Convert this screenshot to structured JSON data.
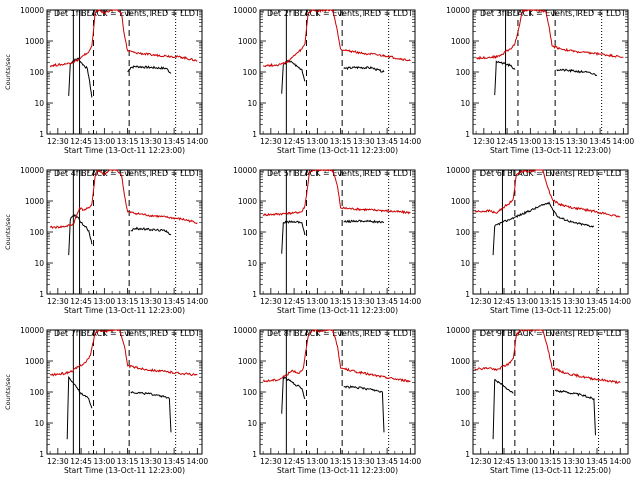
{
  "chart_data": [
    {
      "type": "line",
      "title": "Det 1f BLACK = Events, RED = LLD",
      "xlabel": "Start Time (13-Oct-11 12:23:00)",
      "ylabel": "Counts/sec",
      "yscale": "log",
      "ylim": [
        1,
        10000
      ],
      "xlim": [
        "12:23",
        "14:03"
      ],
      "xticks": [
        "12:30",
        "12:45",
        "13:00",
        "13:15",
        "13:30",
        "13:45",
        "14:00"
      ],
      "yticks": [
        "1",
        "10",
        "100",
        "1000",
        "10000"
      ],
      "grid": false,
      "solid_vlines": [
        "12:40",
        "12:44"
      ],
      "dashed_vlines": [
        "12:53",
        "13:16"
      ],
      "dotted_vlines": [
        "13:46"
      ],
      "series": [
        {
          "color": "#000000",
          "x": [
            "12:37",
            "12:38",
            "12:40",
            "12:43",
            "12:45",
            "12:47",
            "12:49",
            "12:50",
            "12:52",
            "12:55",
            "12:58",
            "13:05",
            "13:10",
            "13:13",
            "13:15",
            "13:17",
            "13:20",
            "13:30",
            "13:40",
            "13:43"
          ],
          "y": [
            17,
            190,
            230,
            280,
            200,
            160,
            130,
            70,
            15,
            null,
            null,
            null,
            null,
            null,
            100,
            140,
            150,
            140,
            130,
            90
          ]
        },
        {
          "color": "#cc0000",
          "x": [
            "12:25",
            "12:35",
            "12:40",
            "12:44",
            "12:47",
            "12:50",
            "12:52",
            "12:54",
            "12:56",
            "13:00",
            "13:04",
            "13:08",
            "13:11",
            "13:13",
            "13:15",
            "13:20",
            "13:30",
            "13:40",
            "13:50",
            "14:00"
          ],
          "y": [
            160,
            180,
            210,
            260,
            350,
            450,
            700,
            8000,
            10000,
            8000,
            10000,
            10000,
            8000,
            1500,
            480,
            420,
            360,
            330,
            300,
            230
          ]
        }
      ]
    },
    {
      "type": "line",
      "title": "Det 2f BLACK = Events, RED = LLD",
      "xlabel": "Start Time (13-Oct-11 12:23:00)",
      "ylabel": "",
      "yscale": "log",
      "ylim": [
        1,
        10000
      ],
      "xlim": [
        "12:23",
        "14:03"
      ],
      "xticks": [
        "12:30",
        "12:45",
        "13:00",
        "13:15",
        "13:30",
        "13:45",
        "14:00"
      ],
      "yticks": [
        "1",
        "10",
        "100",
        "1000",
        "10000"
      ],
      "grid": false,
      "solid_vlines": [
        "12:40"
      ],
      "dashed_vlines": [
        "12:53",
        "13:16"
      ],
      "dotted_vlines": [
        "13:46"
      ],
      "series": [
        {
          "color": "#000000",
          "x": [
            "12:37",
            "12:38",
            "12:41",
            "12:44",
            "12:47",
            "12:50",
            "12:52",
            "13:15",
            "13:17",
            "13:25",
            "13:35",
            "13:43"
          ],
          "y": [
            20,
            170,
            230,
            200,
            150,
            120,
            50,
            null,
            130,
            140,
            135,
            100
          ]
        },
        {
          "color": "#cc0000",
          "x": [
            "12:25",
            "12:35",
            "12:40",
            "12:44",
            "12:48",
            "12:50",
            "12:52",
            "12:54",
            "12:57",
            "13:00",
            "13:05",
            "13:10",
            "13:13",
            "13:15",
            "13:20",
            "13:30",
            "13:45",
            "14:00"
          ],
          "y": [
            160,
            170,
            200,
            300,
            450,
            550,
            800,
            8000,
            10000,
            9000,
            10000,
            10000,
            2000,
            550,
            480,
            400,
            320,
            230
          ]
        }
      ]
    },
    {
      "type": "line",
      "title": "Det 3f BLACK = Events, RED = LLD",
      "xlabel": "Start Time (13-Oct-11 12:23:00)",
      "ylabel": "",
      "yscale": "log",
      "ylim": [
        1,
        10000
      ],
      "xlim": [
        "12:23",
        "14:03"
      ],
      "xticks": [
        "12:30",
        "12:45",
        "13:00",
        "13:15",
        "13:30",
        "13:45",
        "14:00"
      ],
      "yticks": [
        "1",
        "10",
        "100",
        "1000",
        "10000"
      ],
      "grid": false,
      "solid_vlines": [
        "12:44"
      ],
      "dashed_vlines": [
        "12:52",
        "13:16"
      ],
      "dotted_vlines": [
        "13:46"
      ],
      "series": [
        {
          "color": "#000000",
          "x": [
            "12:37",
            "12:38",
            "12:41",
            "12:44",
            "12:47",
            "12:50",
            "13:15",
            "13:17",
            "13:25",
            "13:35",
            "13:43"
          ],
          "y": [
            18,
            220,
            200,
            180,
            160,
            120,
            null,
            120,
            110,
            100,
            80
          ]
        },
        {
          "color": "#cc0000",
          "x": [
            "12:25",
            "12:35",
            "12:40",
            "12:44",
            "12:48",
            "12:50",
            "12:52",
            "12:55",
            "13:00",
            "13:05",
            "13:10",
            "13:12",
            "13:14",
            "13:20",
            "13:30",
            "13:45",
            "14:00"
          ],
          "y": [
            280,
            300,
            320,
            450,
            600,
            800,
            2000,
            10000,
            10000,
            10000,
            9000,
            3000,
            700,
            550,
            450,
            380,
            300
          ]
        }
      ]
    },
    {
      "type": "line",
      "title": "Det 4f BLACK = Events, RED = LLD",
      "xlabel": "Start Time (13-Oct-11 12:23:00)",
      "ylabel": "Counts/sec",
      "yscale": "log",
      "ylim": [
        1,
        10000
      ],
      "xlim": [
        "12:23",
        "14:03"
      ],
      "xticks": [
        "12:30",
        "12:45",
        "13:00",
        "13:15",
        "13:30",
        "13:45",
        "14:00"
      ],
      "yticks": [
        "1",
        "10",
        "100",
        "1000",
        "10000"
      ],
      "grid": false,
      "solid_vlines": [
        "12:40",
        "12:44"
      ],
      "dashed_vlines": [
        "12:53",
        "13:16"
      ],
      "dotted_vlines": [
        "13:46"
      ],
      "series": [
        {
          "color": "#000000",
          "x": [
            "12:37",
            "12:38",
            "12:40",
            "12:43",
            "12:45",
            "12:47",
            "12:50",
            "12:52",
            "13:15",
            "13:17",
            "13:20",
            "13:30",
            "13:40",
            "13:43"
          ],
          "y": [
            18,
            250,
            350,
            300,
            200,
            160,
            110,
            40,
            null,
            110,
            130,
            120,
            110,
            80
          ]
        },
        {
          "color": "#cc0000",
          "x": [
            "12:25",
            "12:35",
            "12:40",
            "12:44",
            "12:47",
            "12:50",
            "12:52",
            "12:54",
            "12:56",
            "13:00",
            "13:04",
            "13:08",
            "13:11",
            "13:13",
            "13:15",
            "13:20",
            "13:30",
            "13:40",
            "13:50",
            "14:00"
          ],
          "y": [
            140,
            150,
            180,
            600,
            500,
            600,
            800,
            6000,
            10000,
            7000,
            10000,
            10000,
            7000,
            1500,
            450,
            400,
            340,
            300,
            260,
            200
          ]
        }
      ]
    },
    {
      "type": "line",
      "title": "Det 5f BLACK = Events, RED = LLD",
      "xlabel": "Start Time (13-Oct-11 12:23:00)",
      "ylabel": "",
      "yscale": "log",
      "ylim": [
        1,
        10000
      ],
      "xlim": [
        "12:23",
        "14:03"
      ],
      "xticks": [
        "12:30",
        "12:45",
        "13:00",
        "13:15",
        "13:30",
        "13:45",
        "14:00"
      ],
      "yticks": [
        "1",
        "10",
        "100",
        "1000",
        "10000"
      ],
      "grid": false,
      "solid_vlines": [
        "12:40"
      ],
      "dashed_vlines": [
        "12:53",
        "13:16"
      ],
      "dotted_vlines": [
        "13:46"
      ],
      "series": [
        {
          "color": "#000000",
          "x": [
            "12:37",
            "12:38",
            "12:41",
            "12:45",
            "12:50",
            "12:52",
            "13:15",
            "13:17",
            "13:25",
            "13:35",
            "13:43"
          ],
          "y": [
            20,
            200,
            210,
            220,
            200,
            80,
            null,
            210,
            230,
            220,
            200
          ]
        },
        {
          "color": "#cc0000",
          "x": [
            "12:25",
            "12:35",
            "12:45",
            "12:50",
            "12:52",
            "12:55",
            "13:00",
            "13:05",
            "13:10",
            "13:13",
            "13:15",
            "13:25",
            "13:40",
            "14:00"
          ],
          "y": [
            360,
            380,
            420,
            450,
            700,
            9000,
            10000,
            10000,
            10000,
            3000,
            600,
            550,
            500,
            420
          ]
        }
      ]
    },
    {
      "type": "line",
      "title": "Det 6f BLACK = Events, RED = LLD",
      "xlabel": "Start Time (13-Oct-11 12:25:00)",
      "ylabel": "",
      "yscale": "log",
      "ylim": [
        1,
        10000
      ],
      "xlim": [
        "12:25",
        "14:05"
      ],
      "xticks": [
        "12:30",
        "12:45",
        "13:00",
        "13:15",
        "13:30",
        "13:45",
        "14:00"
      ],
      "yticks": [
        "1",
        "10",
        "100",
        "1000",
        "10000"
      ],
      "grid": false,
      "solid_vlines": [
        "12:44"
      ],
      "dashed_vlines": [
        "12:52",
        "13:17"
      ],
      "dotted_vlines": [
        "13:46"
      ],
      "series": [
        {
          "color": "#000000",
          "x": [
            "12:38",
            "12:39",
            "12:41",
            "12:44",
            "12:48",
            "12:52",
            "13:14",
            "13:16",
            "13:20",
            "13:30",
            "13:43"
          ],
          "y": [
            18,
            150,
            180,
            200,
            250,
            300,
            900,
            600,
            300,
            200,
            150
          ]
        },
        {
          "color": "#cc0000",
          "x": [
            "12:26",
            "12:36",
            "12:40",
            "12:44",
            "12:48",
            "12:51",
            "12:53",
            "12:56",
            "13:00",
            "13:06",
            "13:10",
            "13:13",
            "13:16",
            "13:20",
            "13:30",
            "13:45",
            "14:00"
          ],
          "y": [
            450,
            480,
            400,
            600,
            800,
            1200,
            7000,
            9000,
            9000,
            10000,
            10000,
            3000,
            1200,
            800,
            600,
            450,
            300
          ]
        }
      ]
    },
    {
      "type": "line",
      "title": "Det 7f BLACK = Events, RED = LLD",
      "xlabel": "Start Time (13-Oct-11 12:23:00)",
      "ylabel": "Counts/sec",
      "yscale": "log",
      "ylim": [
        1,
        10000
      ],
      "xlim": [
        "12:23",
        "14:03"
      ],
      "xticks": [
        "12:30",
        "12:45",
        "13:00",
        "13:15",
        "13:30",
        "13:45",
        "14:00"
      ],
      "yticks": [
        "1",
        "10",
        "100",
        "1000",
        "10000"
      ],
      "grid": false,
      "solid_vlines": [
        "12:40",
        "12:44"
      ],
      "dashed_vlines": [
        "12:53",
        "13:16"
      ],
      "dotted_vlines": [
        "13:46"
      ],
      "series": [
        {
          "color": "#000000",
          "x": [
            "12:36",
            "12:37",
            "12:40",
            "12:43",
            "12:46",
            "12:50",
            "12:52",
            "13:15",
            "13:17",
            "13:25",
            "13:35",
            "13:42",
            "13:43"
          ],
          "y": [
            3,
            300,
            200,
            120,
            80,
            60,
            30,
            null,
            100,
            90,
            80,
            60,
            5
          ]
        },
        {
          "color": "#cc0000",
          "x": [
            "12:25",
            "12:35",
            "12:40",
            "12:44",
            "12:48",
            "12:51",
            "12:54",
            "12:57",
            "13:00",
            "13:05",
            "13:10",
            "13:13",
            "13:15",
            "13:25",
            "13:40",
            "14:00"
          ],
          "y": [
            350,
            400,
            500,
            700,
            900,
            1500,
            8000,
            10000,
            9000,
            10000,
            10000,
            3000,
            700,
            550,
            450,
            350
          ]
        }
      ]
    },
    {
      "type": "line",
      "title": "Det 8f BLACK = Events, RED = LLD",
      "xlabel": "Start Time (13-Oct-11 12:23:00)",
      "ylabel": "",
      "yscale": "log",
      "ylim": [
        1,
        10000
      ],
      "xlim": [
        "12:23",
        "14:03"
      ],
      "xticks": [
        "12:30",
        "12:45",
        "13:00",
        "13:15",
        "13:30",
        "13:45",
        "14:00"
      ],
      "yticks": [
        "1",
        "10",
        "100",
        "1000",
        "10000"
      ],
      "grid": false,
      "solid_vlines": [
        "12:40"
      ],
      "dashed_vlines": [
        "12:53",
        "13:16"
      ],
      "dotted_vlines": [
        "13:46"
      ],
      "series": [
        {
          "color": "#000000",
          "x": [
            "12:37",
            "12:38",
            "12:41",
            "12:44",
            "12:47",
            "12:50",
            "12:52",
            "13:15",
            "13:17",
            "13:25",
            "13:35",
            "13:42",
            "13:43"
          ],
          "y": [
            20,
            300,
            250,
            200,
            160,
            130,
            60,
            null,
            150,
            140,
            120,
            100,
            5
          ]
        },
        {
          "color": "#cc0000",
          "x": [
            "12:25",
            "12:35",
            "12:40",
            "12:44",
            "12:48",
            "12:51",
            "12:54",
            "12:57",
            "13:00",
            "13:05",
            "13:10",
            "13:13",
            "13:15",
            "13:25",
            "13:40",
            "14:00"
          ],
          "y": [
            220,
            250,
            350,
            500,
            400,
            600,
            6000,
            10000,
            9000,
            10000,
            10000,
            3000,
            600,
            450,
            320,
            220
          ]
        }
      ]
    },
    {
      "type": "line",
      "title": "Det 9f BLACK = Events, RED = LLD",
      "xlabel": "Start Time (13-Oct-11 12:25:00)",
      "ylabel": "",
      "yscale": "log",
      "ylim": [
        1,
        10000
      ],
      "xlim": [
        "12:25",
        "14:05"
      ],
      "xticks": [
        "12:30",
        "12:45",
        "13:00",
        "13:15",
        "13:30",
        "13:45",
        "14:00"
      ],
      "yticks": [
        "1",
        "10",
        "100",
        "1000",
        "10000"
      ],
      "grid": false,
      "solid_vlines": [
        "12:44"
      ],
      "dashed_vlines": [
        "12:52",
        "13:17"
      ],
      "dotted_vlines": [
        "13:46"
      ],
      "series": [
        {
          "color": "#000000",
          "x": [
            "12:38",
            "12:39",
            "12:42",
            "12:45",
            "12:48",
            "12:51",
            "13:16",
            "13:18",
            "13:25",
            "13:35",
            "13:43",
            "13:44"
          ],
          "y": [
            3,
            250,
            200,
            150,
            120,
            90,
            null,
            110,
            100,
            80,
            60,
            4
          ]
        },
        {
          "color": "#cc0000",
          "x": [
            "12:26",
            "12:36",
            "12:40",
            "12:44",
            "12:48",
            "12:51",
            "12:53",
            "12:56",
            "13:00",
            "13:06",
            "13:10",
            "13:13",
            "13:16",
            "13:25",
            "13:40",
            "14:00"
          ],
          "y": [
            550,
            600,
            500,
            650,
            800,
            1200,
            7000,
            10000,
            10000,
            10000,
            10000,
            3000,
            600,
            400,
            280,
            200
          ]
        }
      ]
    }
  ]
}
